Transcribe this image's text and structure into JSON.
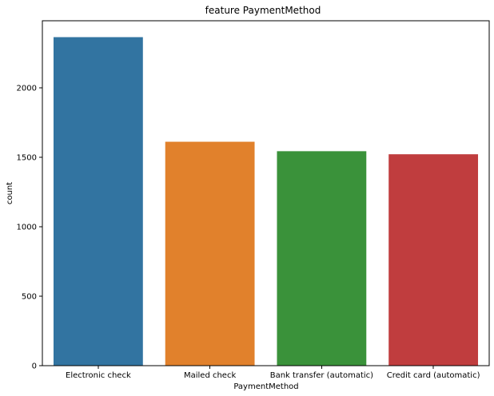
{
  "chart_data": {
    "type": "bar",
    "title": "feature PaymentMethod",
    "xlabel": "PaymentMethod",
    "ylabel": "count",
    "categories": [
      "Electronic check",
      "Mailed check",
      "Bank transfer (automatic)",
      "Credit card (automatic)"
    ],
    "values": [
      2365,
      1612,
      1544,
      1522
    ],
    "ylim": [
      0,
      2483
    ],
    "yticks": [
      0,
      500,
      1000,
      1500,
      2000
    ],
    "colors": [
      "#3274a1",
      "#e1812c",
      "#3a923a",
      "#c03d3e"
    ],
    "grid": false,
    "legend": "none"
  }
}
